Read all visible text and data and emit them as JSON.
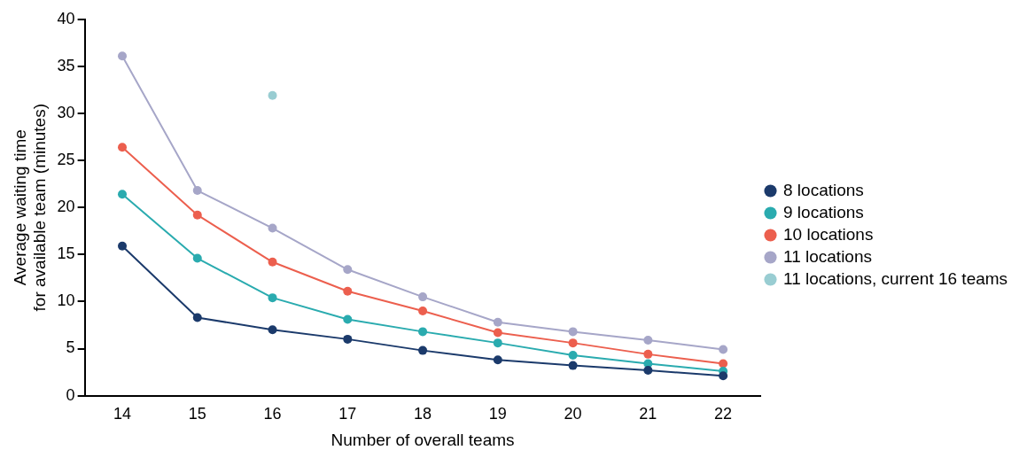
{
  "chart_data": {
    "type": "line",
    "xlabel": "Number of overall teams",
    "ylabel": "Average waiting time\nfor available team (minutes)",
    "categories": [
      "14",
      "15",
      "16",
      "17",
      "18",
      "19",
      "20",
      "21",
      "22"
    ],
    "ylim": [
      0,
      40
    ],
    "yticks": [
      0,
      5,
      10,
      15,
      20,
      25,
      30,
      35,
      40
    ],
    "grid": false,
    "legend": "right",
    "marker": "circle",
    "line_style": "solid",
    "series": [
      {
        "name": "8 locations",
        "color": "#1b3a6b",
        "values": [
          15.9,
          8.3,
          7.0,
          6.0,
          4.8,
          3.8,
          3.2,
          2.7,
          2.1
        ]
      },
      {
        "name": "9 locations",
        "color": "#2aabaf",
        "values": [
          21.4,
          14.6,
          10.4,
          8.1,
          6.8,
          5.6,
          4.3,
          3.4,
          2.6
        ]
      },
      {
        "name": "10 locations",
        "color": "#ec5f4e",
        "values": [
          26.4,
          19.2,
          14.2,
          11.1,
          9.0,
          6.7,
          5.6,
          4.4,
          3.4
        ]
      },
      {
        "name": "11 locations",
        "color": "#a6a6c8",
        "values": [
          36.1,
          21.8,
          17.8,
          13.4,
          10.5,
          7.8,
          6.8,
          5.9,
          4.9
        ]
      },
      {
        "name": "11 locations, current 16 teams",
        "type": "scatter",
        "color": "#99cdd2",
        "x": [
          "16"
        ],
        "values": [
          31.9
        ]
      }
    ]
  }
}
